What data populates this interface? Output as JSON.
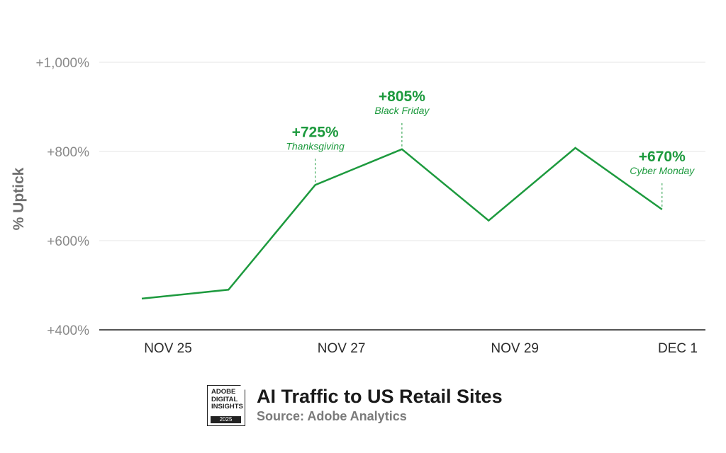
{
  "chart_data": {
    "type": "line",
    "title": "AI Traffic to US Retail Sites",
    "subtitle": "Source: Adobe Analytics",
    "ylabel": "% Uptick",
    "xlabel": "",
    "x_ticks": [
      "NOV 25",
      "NOV 27",
      "NOV 29",
      "DEC 1"
    ],
    "y_ticks": [
      "+400%",
      "+600%",
      "+800%",
      "+1,000%"
    ],
    "y_tick_values": [
      400,
      600,
      800,
      1000
    ],
    "ylim": [
      400,
      1000
    ],
    "grid": true,
    "color": "#1d9a3e",
    "series": [
      {
        "x": [
          "Nov 25",
          "Nov 26",
          "Nov 27",
          "Nov 28",
          "Nov 29",
          "Nov 30",
          "Dec 1"
        ],
        "values": [
          470,
          490,
          725,
          805,
          645,
          808,
          670
        ]
      }
    ],
    "annotations": [
      {
        "x": "Nov 27",
        "value": 725,
        "text": "+725%",
        "label": "Thanksgiving"
      },
      {
        "x": "Nov 28",
        "value": 805,
        "text": "+805%",
        "label": "Black Friday"
      },
      {
        "x": "Dec 1",
        "value": 670,
        "text": "+670%",
        "label": "Cyber Monday"
      }
    ]
  },
  "badge": {
    "text": "ADOBE\nDIGITAL\nINSIGHTS",
    "year": "2025"
  }
}
